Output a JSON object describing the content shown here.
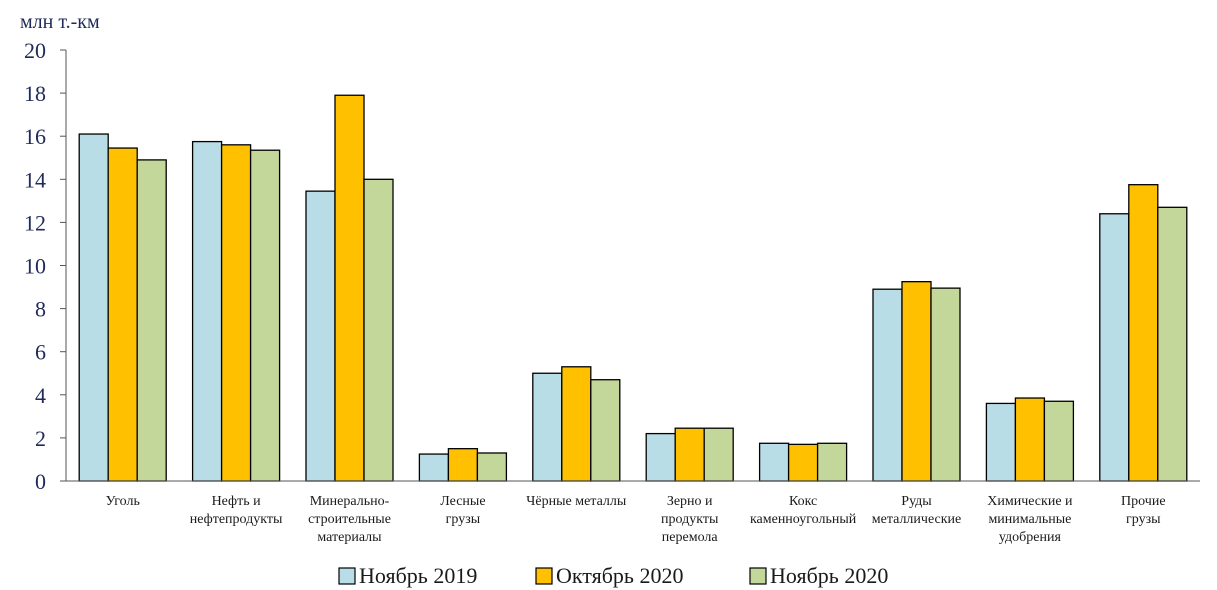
{
  "chart_data": {
    "type": "bar",
    "ylabel": "млн т.-км",
    "ylim": [
      0,
      20
    ],
    "yticks": [
      "0",
      "2",
      "4",
      "6",
      "8",
      "10",
      "12",
      "14",
      "16",
      "18",
      "20"
    ],
    "categories": [
      [
        "Уголь"
      ],
      [
        "Нефть и",
        "нефтепродукты"
      ],
      [
        "Минерально-",
        "строительные",
        "материалы"
      ],
      [
        "Лесные",
        "грузы"
      ],
      [
        "Чёрные металлы"
      ],
      [
        "Зерно и",
        "продукты",
        "перемола"
      ],
      [
        "Кокс",
        "каменноугольный"
      ],
      [
        "Руды",
        "металлические"
      ],
      [
        "Химические и",
        "минимальные",
        "удобрения"
      ],
      [
        "Прочие",
        "грузы"
      ]
    ],
    "series": [
      {
        "name": "Ноябрь 2019",
        "color": "#b9dde6",
        "values": [
          16.1,
          15.75,
          13.45,
          1.25,
          5.0,
          2.2,
          1.75,
          8.9,
          3.6,
          12.4
        ]
      },
      {
        "name": "Октябрь 2020",
        "color": "#ffc000",
        "values": [
          15.45,
          15.6,
          17.9,
          1.5,
          5.3,
          2.45,
          1.7,
          9.25,
          3.85,
          13.75
        ]
      },
      {
        "name": "Ноябрь 2020",
        "color": "#c4d79b",
        "values": [
          14.9,
          15.35,
          14.0,
          1.3,
          4.7,
          2.45,
          1.75,
          8.95,
          3.7,
          12.7
        ]
      }
    ],
    "grid": false,
    "legend": "bottom-center"
  }
}
